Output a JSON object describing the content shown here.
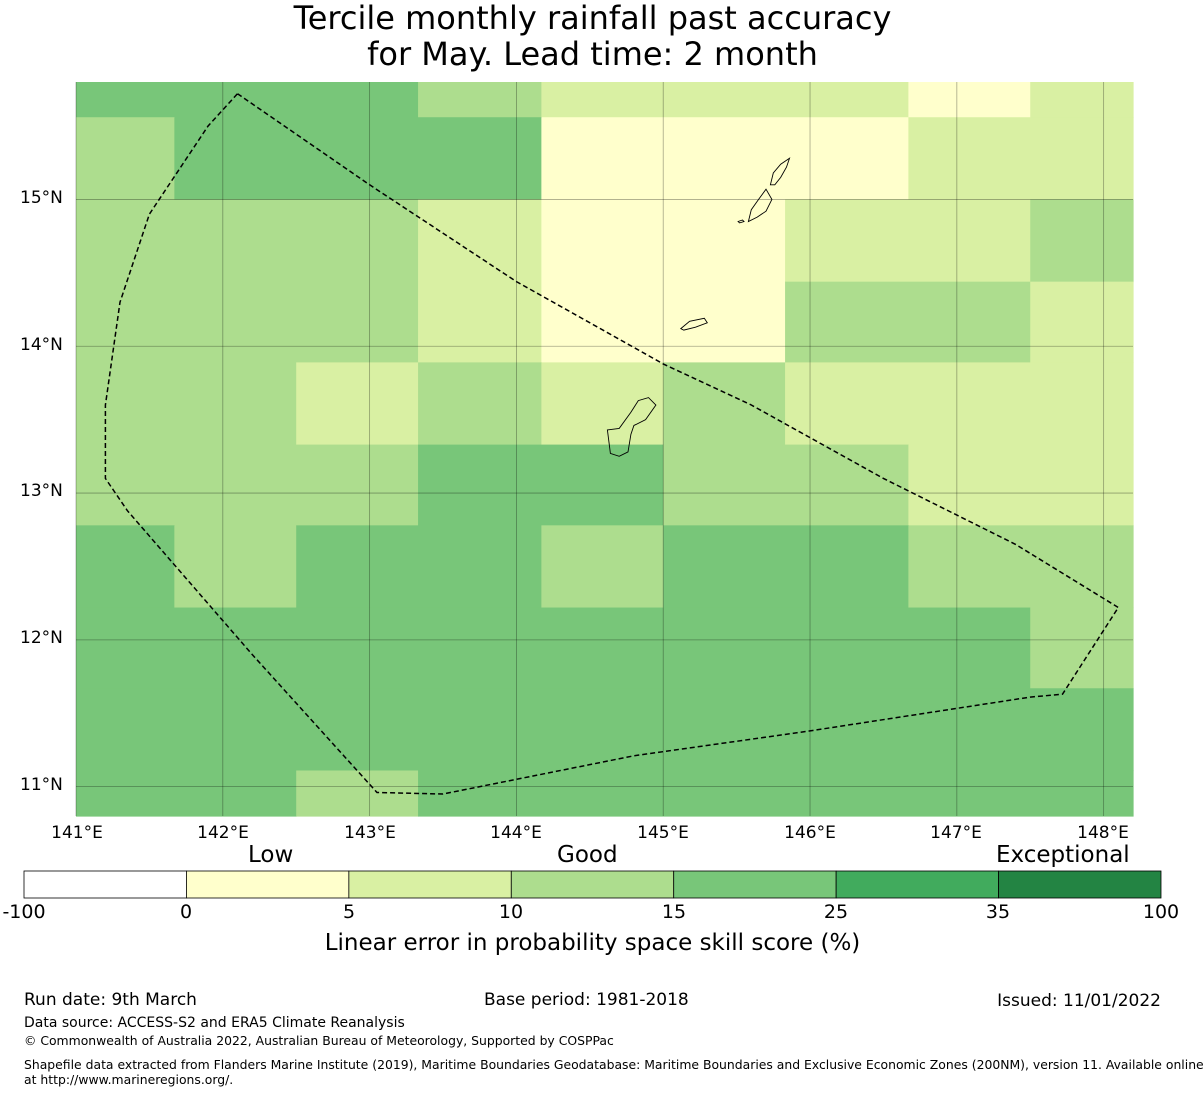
{
  "title": {
    "line1": "Tercile monthly rainfall past accuracy",
    "line2": "for May. Lead time: 2 month"
  },
  "map": {
    "lon_range": [
      141.0,
      148.2
    ],
    "lat_range": [
      10.8,
      15.8
    ],
    "x_ticks": [
      "141°E",
      "142°E",
      "143°E",
      "144°E",
      "145°E",
      "146°E",
      "147°E",
      "148°E"
    ],
    "y_ticks": [
      "15°N",
      "14°N",
      "13°N",
      "12°N",
      "11°N"
    ],
    "grid_cells": [
      {
        "lon_min": 141.0,
        "lon_max": 143.33,
        "lat_min": 15.56,
        "lat_max": 15.8,
        "skill": 20
      },
      {
        "lon_min": 143.33,
        "lon_max": 144.17,
        "lat_min": 15.56,
        "lat_max": 15.8,
        "skill": 12
      },
      {
        "lon_min": 144.17,
        "lon_max": 146.67,
        "lat_min": 15.56,
        "lat_max": 15.8,
        "skill": 7
      },
      {
        "lon_min": 146.67,
        "lon_max": 147.5,
        "lat_min": 15.56,
        "lat_max": 15.8,
        "skill": 2
      },
      {
        "lon_min": 147.5,
        "lon_max": 148.2,
        "lat_min": 15.56,
        "lat_max": 15.8,
        "skill": 7
      },
      {
        "lon_min": 141.0,
        "lon_max": 141.67,
        "lat_min": 15.0,
        "lat_max": 15.56,
        "skill": 12
      },
      {
        "lon_min": 141.67,
        "lon_max": 144.17,
        "lat_min": 15.0,
        "lat_max": 15.56,
        "skill": 20
      },
      {
        "lon_min": 144.17,
        "lon_max": 146.67,
        "lat_min": 15.0,
        "lat_max": 15.56,
        "skill": 2
      },
      {
        "lon_min": 146.67,
        "lon_max": 148.2,
        "lat_min": 15.0,
        "lat_max": 15.56,
        "skill": 7
      },
      {
        "lon_min": 141.0,
        "lon_max": 143.33,
        "lat_min": 13.89,
        "lat_max": 15.0,
        "skill": 12
      },
      {
        "lon_min": 143.33,
        "lon_max": 144.17,
        "lat_min": 13.89,
        "lat_max": 15.0,
        "skill": 7
      },
      {
        "lon_min": 144.17,
        "lon_max": 145.83,
        "lat_min": 13.89,
        "lat_max": 15.0,
        "skill": 2
      },
      {
        "lon_min": 145.83,
        "lon_max": 147.5,
        "lat_min": 14.44,
        "lat_max": 15.0,
        "skill": 7
      },
      {
        "lon_min": 147.5,
        "lon_max": 148.2,
        "lat_min": 14.44,
        "lat_max": 15.0,
        "skill": 12
      },
      {
        "lon_min": 145.83,
        "lon_max": 147.5,
        "lat_min": 13.89,
        "lat_max": 14.44,
        "skill": 12
      },
      {
        "lon_min": 147.5,
        "lon_max": 148.2,
        "lat_min": 13.89,
        "lat_max": 14.44,
        "skill": 7
      },
      {
        "lon_min": 141.0,
        "lon_max": 142.5,
        "lat_min": 13.33,
        "lat_max": 13.89,
        "skill": 12
      },
      {
        "lon_min": 142.5,
        "lon_max": 143.33,
        "lat_min": 13.33,
        "lat_max": 13.89,
        "skill": 7
      },
      {
        "lon_min": 143.33,
        "lon_max": 144.17,
        "lat_min": 13.33,
        "lat_max": 13.89,
        "skill": 12
      },
      {
        "lon_min": 144.17,
        "lon_max": 145.0,
        "lat_min": 13.33,
        "lat_max": 13.89,
        "skill": 7
      },
      {
        "lon_min": 145.0,
        "lon_max": 145.83,
        "lat_min": 13.33,
        "lat_max": 13.89,
        "skill": 12
      },
      {
        "lon_min": 145.83,
        "lon_max": 148.2,
        "lat_min": 13.33,
        "lat_max": 13.89,
        "skill": 7
      },
      {
        "lon_min": 141.0,
        "lon_max": 143.33,
        "lat_min": 12.78,
        "lat_max": 13.33,
        "skill": 12
      },
      {
        "lon_min": 143.33,
        "lon_max": 145.0,
        "lat_min": 12.78,
        "lat_max": 13.33,
        "skill": 20
      },
      {
        "lon_min": 145.0,
        "lon_max": 146.67,
        "lat_min": 12.78,
        "lat_max": 13.33,
        "skill": 12
      },
      {
        "lon_min": 146.67,
        "lon_max": 148.2,
        "lat_min": 12.78,
        "lat_max": 13.33,
        "skill": 7
      },
      {
        "lon_min": 141.0,
        "lon_max": 141.67,
        "lat_min": 12.22,
        "lat_max": 12.78,
        "skill": 20
      },
      {
        "lon_min": 141.67,
        "lon_max": 142.5,
        "lat_min": 12.22,
        "lat_max": 12.78,
        "skill": 12
      },
      {
        "lon_min": 142.5,
        "lon_max": 144.17,
        "lat_min": 12.22,
        "lat_max": 12.78,
        "skill": 20
      },
      {
        "lon_min": 144.17,
        "lon_max": 145.0,
        "lat_min": 12.22,
        "lat_max": 12.78,
        "skill": 12
      },
      {
        "lon_min": 145.0,
        "lon_max": 146.67,
        "lat_min": 12.22,
        "lat_max": 12.78,
        "skill": 20
      },
      {
        "lon_min": 146.67,
        "lon_max": 148.2,
        "lat_min": 12.22,
        "lat_max": 12.78,
        "skill": 12
      },
      {
        "lon_min": 141.0,
        "lon_max": 147.5,
        "lat_min": 11.67,
        "lat_max": 12.22,
        "skill": 20
      },
      {
        "lon_min": 147.5,
        "lon_max": 148.2,
        "lat_min": 11.67,
        "lat_max": 12.22,
        "skill": 12
      },
      {
        "lon_min": 141.0,
        "lon_max": 148.2,
        "lat_min": 11.11,
        "lat_max": 11.67,
        "skill": 20
      },
      {
        "lon_min": 141.0,
        "lon_max": 142.5,
        "lat_min": 10.8,
        "lat_max": 11.11,
        "skill": 20
      },
      {
        "lon_min": 142.5,
        "lon_max": 143.33,
        "lat_min": 10.8,
        "lat_max": 11.11,
        "skill": 12
      },
      {
        "lon_min": 143.33,
        "lon_max": 148.2,
        "lat_min": 10.8,
        "lat_max": 11.11,
        "skill": 20
      }
    ],
    "eez_boundary": [
      [
        142.1,
        15.72
      ],
      [
        143.0,
        15.1
      ],
      [
        144.0,
        14.44
      ],
      [
        145.0,
        13.88
      ],
      [
        145.6,
        13.6
      ],
      [
        146.5,
        13.1
      ],
      [
        147.4,
        12.65
      ],
      [
        148.1,
        12.22
      ],
      [
        147.72,
        11.63
      ],
      [
        147.5,
        11.61
      ],
      [
        146.0,
        11.38
      ],
      [
        144.8,
        11.21
      ],
      [
        143.5,
        10.95
      ],
      [
        143.05,
        10.96
      ],
      [
        142.2,
        11.9
      ],
      [
        141.35,
        12.88
      ],
      [
        141.2,
        13.1
      ],
      [
        141.2,
        13.6
      ],
      [
        141.3,
        14.3
      ],
      [
        141.5,
        14.9
      ],
      [
        141.9,
        15.5
      ],
      [
        142.1,
        15.72
      ]
    ],
    "islands": [
      [
        [
          144.62,
          13.43
        ],
        [
          144.7,
          13.44
        ],
        [
          144.78,
          13.55
        ],
        [
          144.83,
          13.63
        ],
        [
          144.9,
          13.65
        ],
        [
          144.95,
          13.6
        ],
        [
          144.88,
          13.5
        ],
        [
          144.8,
          13.46
        ],
        [
          144.78,
          13.4
        ],
        [
          144.76,
          13.28
        ],
        [
          144.7,
          13.25
        ],
        [
          144.64,
          13.27
        ],
        [
          144.63,
          13.35
        ],
        [
          144.62,
          13.43
        ]
      ],
      [
        [
          145.12,
          14.12
        ],
        [
          145.18,
          14.17
        ],
        [
          145.28,
          14.19
        ],
        [
          145.3,
          14.16
        ],
        [
          145.22,
          14.13
        ],
        [
          145.14,
          14.11
        ],
        [
          145.12,
          14.12
        ]
      ],
      [
        [
          145.58,
          14.85
        ],
        [
          145.6,
          14.93
        ],
        [
          145.65,
          15.0
        ],
        [
          145.7,
          15.07
        ],
        [
          145.74,
          15.0
        ],
        [
          145.7,
          14.92
        ],
        [
          145.64,
          14.88
        ],
        [
          145.58,
          14.85
        ]
      ],
      [
        [
          145.51,
          14.85
        ],
        [
          145.54,
          14.86
        ],
        [
          145.55,
          14.85
        ],
        [
          145.52,
          14.84
        ],
        [
          145.51,
          14.85
        ]
      ],
      [
        [
          145.73,
          15.1
        ],
        [
          145.75,
          15.18
        ],
        [
          145.8,
          15.24
        ],
        [
          145.86,
          15.28
        ],
        [
          145.84,
          15.22
        ],
        [
          145.8,
          15.15
        ],
        [
          145.76,
          15.1
        ],
        [
          145.73,
          15.1
        ]
      ]
    ]
  },
  "colorbar": {
    "category_low": "Low",
    "category_good": "Good",
    "category_exceptional": "Exceptional",
    "bins": [
      {
        "from": -100,
        "to": 0,
        "color": "#ffffff"
      },
      {
        "from": 0,
        "to": 5,
        "color": "#ffffcc"
      },
      {
        "from": 5,
        "to": 10,
        "color": "#d9f0a3"
      },
      {
        "from": 10,
        "to": 15,
        "color": "#addd8e"
      },
      {
        "from": 15,
        "to": 25,
        "color": "#78c679"
      },
      {
        "from": 25,
        "to": 35,
        "color": "#41ab5d"
      },
      {
        "from": 35,
        "to": 100,
        "color": "#238443"
      }
    ],
    "tick_labels": [
      "-100",
      "0",
      "5",
      "10",
      "15",
      "25",
      "35",
      "100"
    ],
    "label": "Linear error in probability space skill score (%)"
  },
  "footer": {
    "run_date": "Run date: 9th March",
    "base_period": "Base period: 1981-2018",
    "issued": "Issued: 11/01/2022",
    "data_source": "Data source: ACCESS-S2 and ERA5 Climate Reanalysis",
    "copyright": "© Commonwealth of Australia 2022, Australian Bureau of Meteorology, Supported by COSPPac",
    "shapefile_line1": "Shapefile data extracted from Flanders Marine Institute (2019), Maritime Boundaries Geodatabase: Maritime Boundaries and Exclusive Economic Zones (200NM), version 11. Available online",
    "shapefile_line2": "at http://www.marineregions.org/."
  }
}
